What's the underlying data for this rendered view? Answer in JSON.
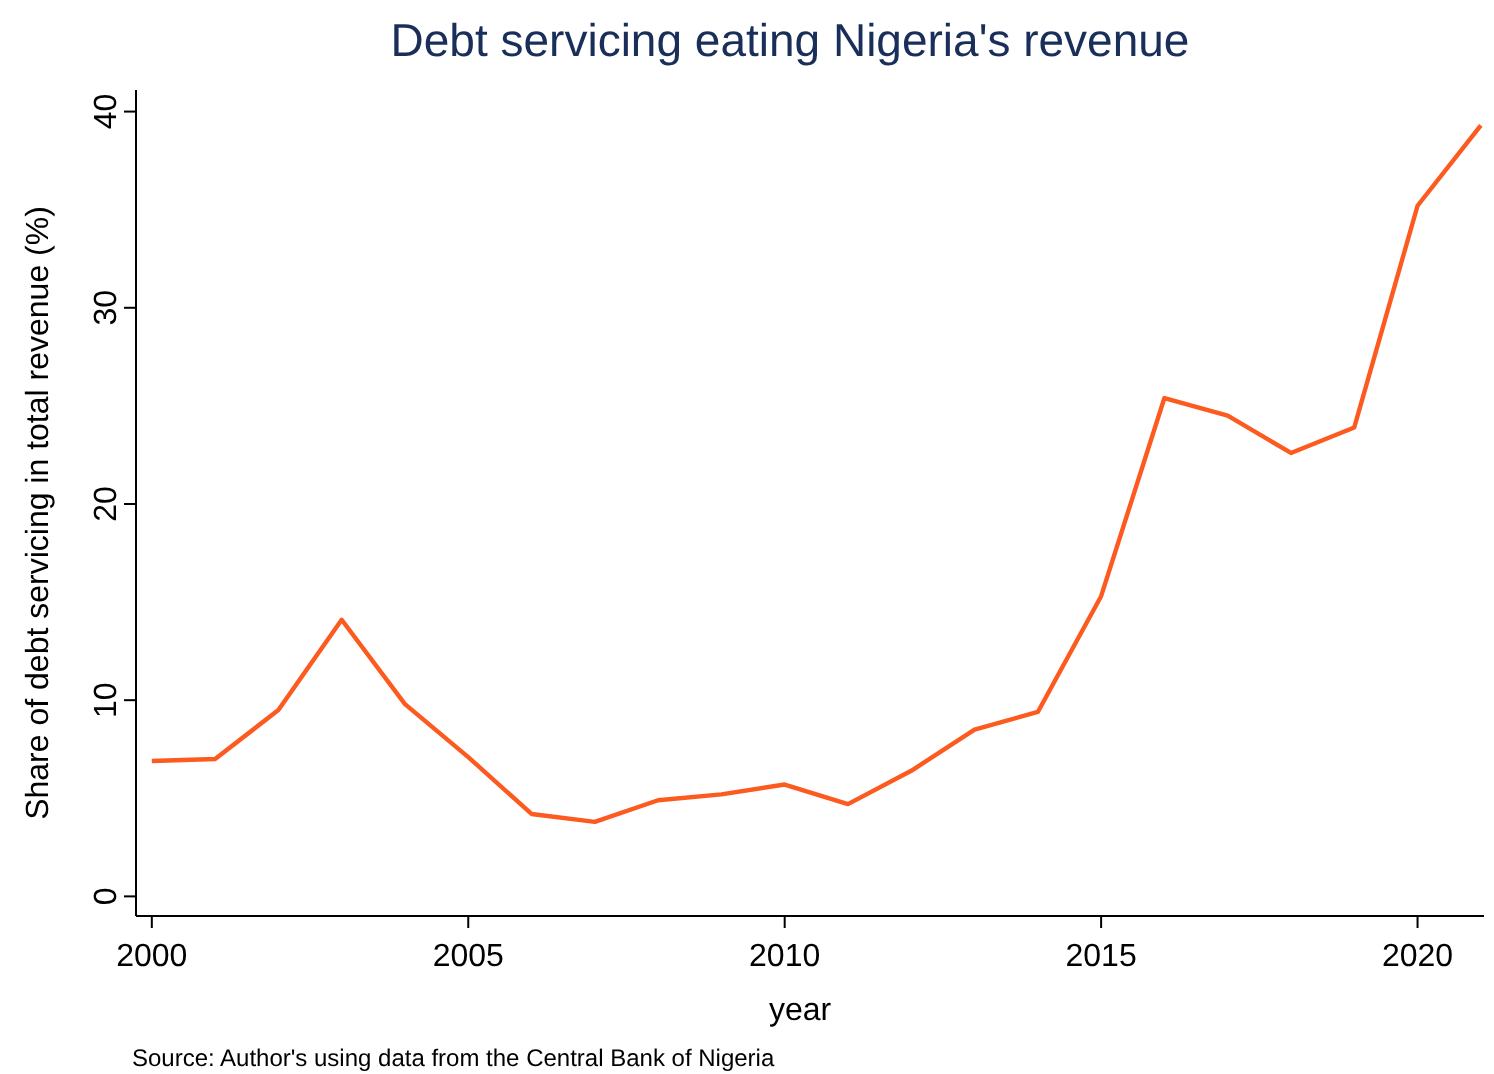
{
  "chart_data": {
    "type": "line",
    "title": "Debt servicing eating Nigeria's revenue",
    "xlabel": "year",
    "ylabel": "Share of debt servicing in total revenue (%)",
    "annotations": [
      "Source: Author's using data from the Central Bank of Nigeria"
    ],
    "x": [
      2000,
      2001,
      2002,
      2003,
      2004,
      2005,
      2006,
      2007,
      2008,
      2009,
      2010,
      2011,
      2012,
      2013,
      2014,
      2015,
      2016,
      2017,
      2018,
      2019,
      2020,
      2021
    ],
    "series": [
      {
        "color": "#fc5a1e",
        "values": [
          6.9,
          7.0,
          9.5,
          14.1,
          9.8,
          7.1,
          4.2,
          3.8,
          4.9,
          5.2,
          5.7,
          4.7,
          6.4,
          8.5,
          9.4,
          15.3,
          25.4,
          24.5,
          22.6,
          23.9,
          35.2,
          39.3
        ]
      }
    ],
    "xlim": [
      1999.75,
      2021.05
    ],
    "xticks": [
      2000,
      2005,
      2010,
      2015,
      2020
    ],
    "ylim": [
      -1,
      41.1
    ],
    "yticks": [
      0,
      10,
      20,
      30,
      40
    ],
    "grid": false,
    "marker": "none",
    "line_style": "solid"
  }
}
